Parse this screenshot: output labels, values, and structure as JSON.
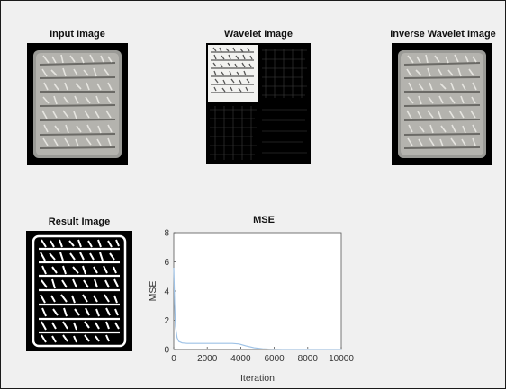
{
  "panels": {
    "input_title": "Input Image",
    "wavelet_title": "Wavelet Image",
    "inverse_title": "Inverse Wavelet Image",
    "result_title": "Result Image"
  },
  "chart_data": {
    "type": "line",
    "title": "MSE",
    "xlabel": "Iteration",
    "ylabel": "MSE",
    "xlim": [
      0,
      10000
    ],
    "ylim": [
      0,
      8
    ],
    "xticks": [
      0,
      2000,
      4000,
      6000,
      8000,
      10000
    ],
    "yticks": [
      0,
      2,
      4,
      6,
      8
    ],
    "grid": false,
    "line_color": "#9ec2e6",
    "series": [
      {
        "x": [
          0,
          50,
          100,
          200,
          300,
          500,
          800,
          1500,
          2500,
          3500,
          3900,
          4300,
          4800,
          5300,
          5800,
          6500,
          8000,
          10000
        ],
        "values": [
          5.6,
          3.2,
          1.6,
          0.8,
          0.55,
          0.45,
          0.42,
          0.42,
          0.42,
          0.42,
          0.38,
          0.25,
          0.12,
          0.05,
          0.02,
          0.01,
          0.01,
          0.01
        ]
      }
    ]
  }
}
